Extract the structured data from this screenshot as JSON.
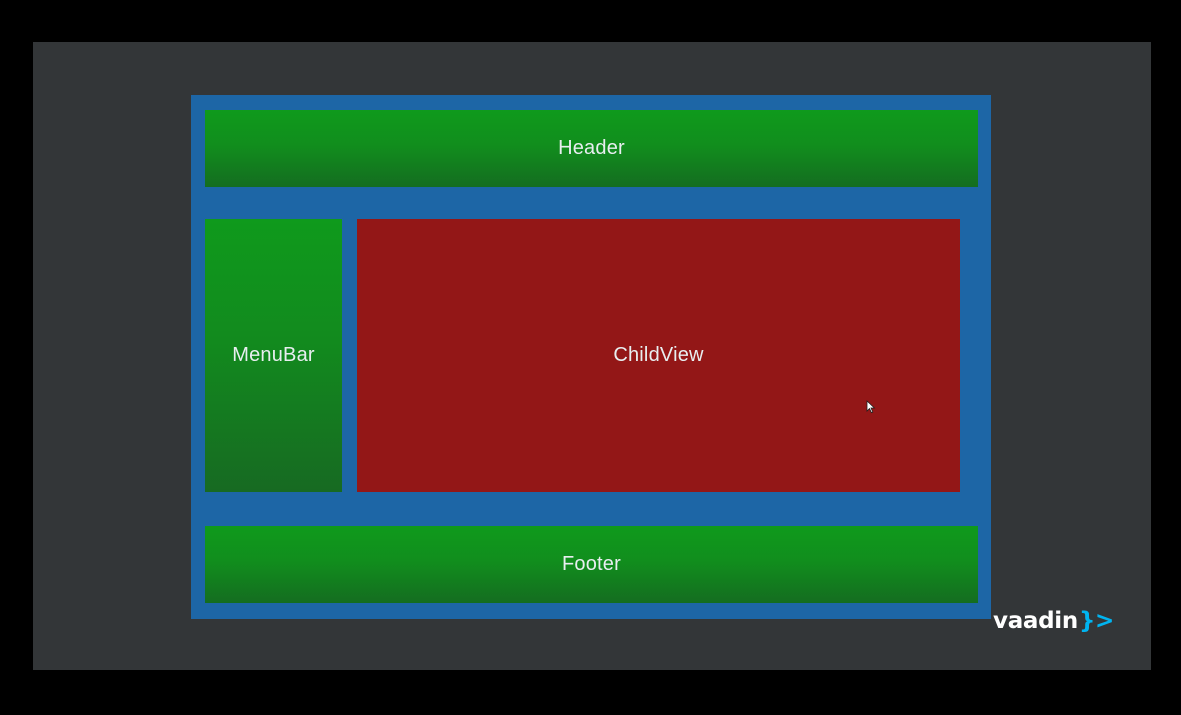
{
  "layout_diagram": {
    "header_label": "Header",
    "menubar_label": "MenuBar",
    "childview_label": "ChildView",
    "footer_label": "Footer"
  },
  "brand": {
    "name": "vaadin",
    "mark": "}>"
  },
  "colors": {
    "background": "#000000",
    "slide": "#333638",
    "frame": "#1d66a6",
    "green": "#118e1d",
    "red": "#931717",
    "brand_accent": "#00b4f0"
  }
}
